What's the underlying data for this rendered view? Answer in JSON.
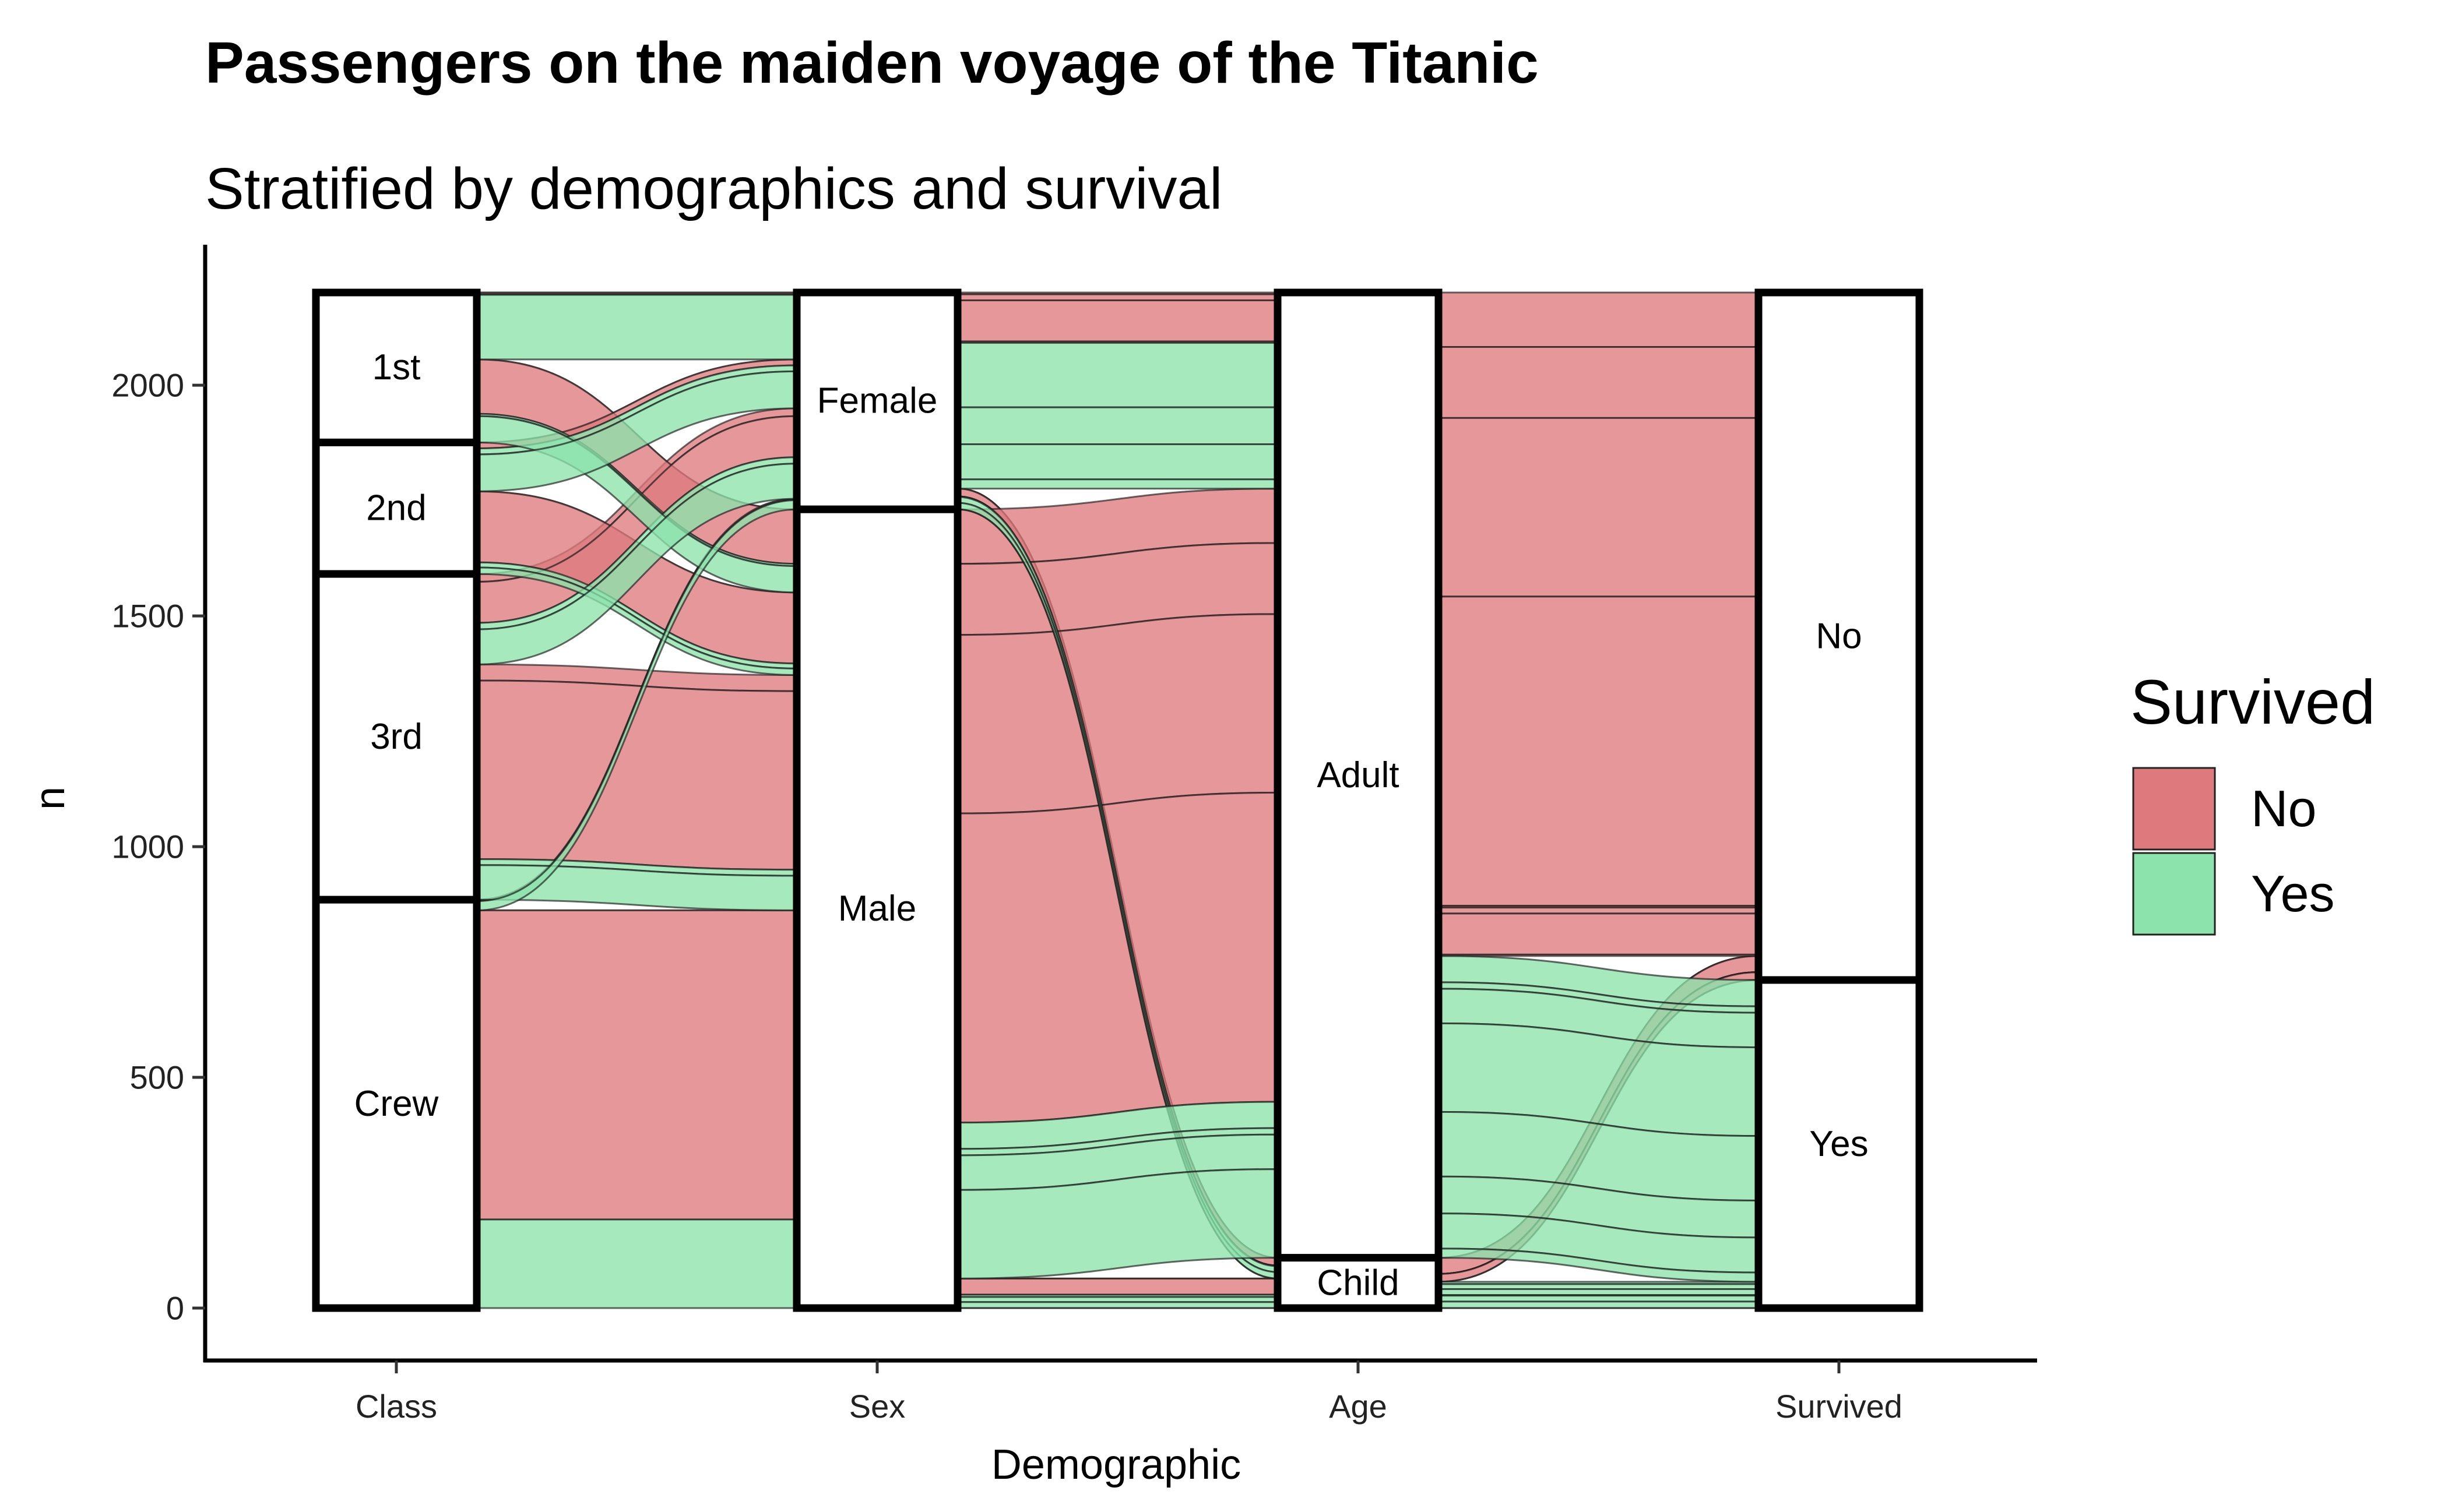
{
  "chart_data": {
    "type": "alluvial",
    "title": "Passengers on the maiden voyage of the Titanic",
    "subtitle": "Stratified by demographics and survival",
    "xlabel": "Demographic",
    "ylabel": "n",
    "ylim": [
      0,
      2201
    ],
    "yticks": [
      0,
      500,
      1000,
      1500,
      2000
    ],
    "axes": [
      "Class",
      "Sex",
      "Age",
      "Survived"
    ],
    "strata": {
      "Class": [
        "1st",
        "2nd",
        "3rd",
        "Crew"
      ],
      "Sex": [
        "Female",
        "Male"
      ],
      "Age": [
        "Adult",
        "Child"
      ],
      "Survived": [
        "No",
        "Yes"
      ]
    },
    "legend": {
      "title": "Survived",
      "placement": "right",
      "entries": [
        {
          "label": "No",
          "color": "#DE7A7E"
        },
        {
          "label": "Yes",
          "color": "#8CE3AB"
        }
      ]
    },
    "flows": [
      {
        "Class": "1st",
        "Sex": "Male",
        "Age": "Child",
        "Survived": "No",
        "n": 0
      },
      {
        "Class": "2nd",
        "Sex": "Male",
        "Age": "Child",
        "Survived": "No",
        "n": 0
      },
      {
        "Class": "3rd",
        "Sex": "Male",
        "Age": "Child",
        "Survived": "No",
        "n": 35
      },
      {
        "Class": "Crew",
        "Sex": "Male",
        "Age": "Child",
        "Survived": "No",
        "n": 0
      },
      {
        "Class": "1st",
        "Sex": "Female",
        "Age": "Child",
        "Survived": "No",
        "n": 0
      },
      {
        "Class": "2nd",
        "Sex": "Female",
        "Age": "Child",
        "Survived": "No",
        "n": 0
      },
      {
        "Class": "3rd",
        "Sex": "Female",
        "Age": "Child",
        "Survived": "No",
        "n": 17
      },
      {
        "Class": "Crew",
        "Sex": "Female",
        "Age": "Child",
        "Survived": "No",
        "n": 0
      },
      {
        "Class": "1st",
        "Sex": "Male",
        "Age": "Adult",
        "Survived": "No",
        "n": 118
      },
      {
        "Class": "2nd",
        "Sex": "Male",
        "Age": "Adult",
        "Survived": "No",
        "n": 154
      },
      {
        "Class": "3rd",
        "Sex": "Male",
        "Age": "Adult",
        "Survived": "No",
        "n": 387
      },
      {
        "Class": "Crew",
        "Sex": "Male",
        "Age": "Adult",
        "Survived": "No",
        "n": 670
      },
      {
        "Class": "1st",
        "Sex": "Female",
        "Age": "Adult",
        "Survived": "No",
        "n": 4
      },
      {
        "Class": "2nd",
        "Sex": "Female",
        "Age": "Adult",
        "Survived": "No",
        "n": 13
      },
      {
        "Class": "3rd",
        "Sex": "Female",
        "Age": "Adult",
        "Survived": "No",
        "n": 89
      },
      {
        "Class": "Crew",
        "Sex": "Female",
        "Age": "Adult",
        "Survived": "No",
        "n": 3
      },
      {
        "Class": "1st",
        "Sex": "Male",
        "Age": "Child",
        "Survived": "Yes",
        "n": 5
      },
      {
        "Class": "2nd",
        "Sex": "Male",
        "Age": "Child",
        "Survived": "Yes",
        "n": 11
      },
      {
        "Class": "3rd",
        "Sex": "Male",
        "Age": "Child",
        "Survived": "Yes",
        "n": 13
      },
      {
        "Class": "Crew",
        "Sex": "Male",
        "Age": "Child",
        "Survived": "Yes",
        "n": 0
      },
      {
        "Class": "1st",
        "Sex": "Female",
        "Age": "Child",
        "Survived": "Yes",
        "n": 1
      },
      {
        "Class": "2nd",
        "Sex": "Female",
        "Age": "Child",
        "Survived": "Yes",
        "n": 13
      },
      {
        "Class": "3rd",
        "Sex": "Female",
        "Age": "Child",
        "Survived": "Yes",
        "n": 14
      },
      {
        "Class": "Crew",
        "Sex": "Female",
        "Age": "Child",
        "Survived": "Yes",
        "n": 0
      },
      {
        "Class": "1st",
        "Sex": "Male",
        "Age": "Adult",
        "Survived": "Yes",
        "n": 57
      },
      {
        "Class": "2nd",
        "Sex": "Male",
        "Age": "Adult",
        "Survived": "Yes",
        "n": 14
      },
      {
        "Class": "3rd",
        "Sex": "Male",
        "Age": "Adult",
        "Survived": "Yes",
        "n": 75
      },
      {
        "Class": "Crew",
        "Sex": "Male",
        "Age": "Adult",
        "Survived": "Yes",
        "n": 192
      },
      {
        "Class": "1st",
        "Sex": "Female",
        "Age": "Adult",
        "Survived": "Yes",
        "n": 140
      },
      {
        "Class": "2nd",
        "Sex": "Female",
        "Age": "Adult",
        "Survived": "Yes",
        "n": 80
      },
      {
        "Class": "3rd",
        "Sex": "Female",
        "Age": "Adult",
        "Survived": "Yes",
        "n": 76
      },
      {
        "Class": "Crew",
        "Sex": "Female",
        "Age": "Adult",
        "Survived": "Yes",
        "n": 20
      }
    ]
  }
}
